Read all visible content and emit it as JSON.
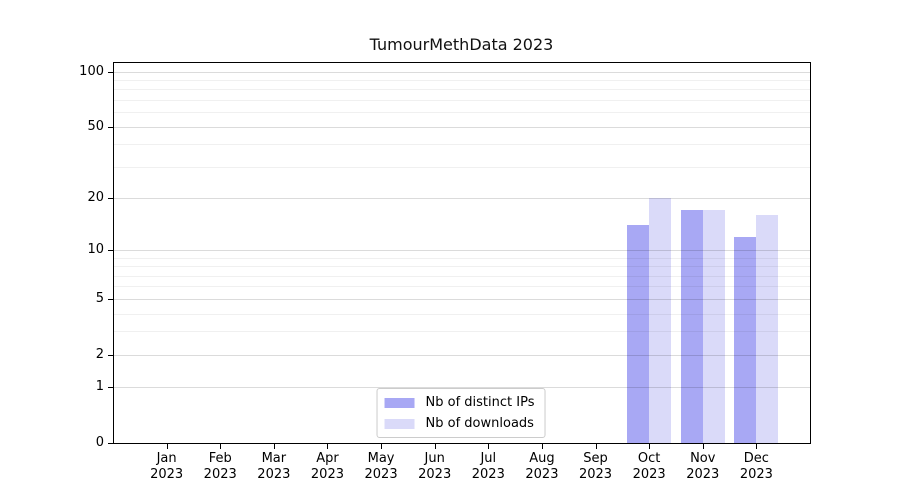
{
  "chart_data": {
    "type": "bar",
    "title": "TumourMethData 2023",
    "categories": [
      {
        "month": "Jan",
        "year": "2023"
      },
      {
        "month": "Feb",
        "year": "2023"
      },
      {
        "month": "Mar",
        "year": "2023"
      },
      {
        "month": "Apr",
        "year": "2023"
      },
      {
        "month": "May",
        "year": "2023"
      },
      {
        "month": "Jun",
        "year": "2023"
      },
      {
        "month": "Jul",
        "year": "2023"
      },
      {
        "month": "Aug",
        "year": "2023"
      },
      {
        "month": "Sep",
        "year": "2023"
      },
      {
        "month": "Oct",
        "year": "2023"
      },
      {
        "month": "Nov",
        "year": "2023"
      },
      {
        "month": "Dec",
        "year": "2023"
      }
    ],
    "series": [
      {
        "name": "Nb of distinct IPs",
        "color": "#a8a8f4",
        "values": [
          0,
          0,
          0,
          0,
          0,
          0,
          0,
          0,
          0,
          14,
          17,
          12
        ]
      },
      {
        "name": "Nb of downloads",
        "color": "#dadaf9",
        "values": [
          0,
          0,
          0,
          0,
          0,
          0,
          0,
          0,
          0,
          20,
          17,
          16
        ]
      }
    ],
    "yscale": "log1p",
    "ylim": [
      0,
      113
    ],
    "y_major_ticks": [
      100,
      50,
      20,
      10,
      5,
      2,
      1,
      0
    ],
    "y_minor_gridlines": [
      90,
      80,
      70,
      60,
      40,
      30,
      9,
      8,
      7,
      6,
      4,
      3
    ],
    "xlabel": "",
    "ylabel": "",
    "grid": "horizontal",
    "legend_position": "lower center"
  },
  "colors": {
    "background": "#ffffff",
    "axis": "#000000",
    "grid_major": "#d7d7d7",
    "grid_minor": "#efefef",
    "bar_distinct_ips": "#a8a8f4",
    "bar_downloads": "#dadaf9"
  }
}
